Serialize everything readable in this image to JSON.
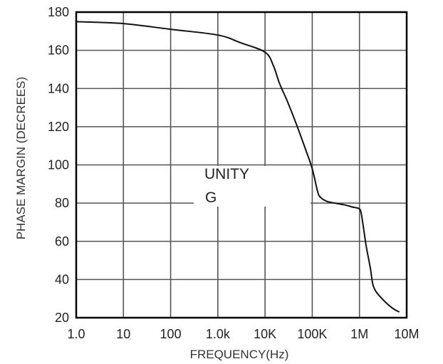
{
  "chart_data": {
    "type": "line",
    "title": "",
    "xlabel": "FREQUENCY(Hz)",
    "ylabel": "PHASE MARGIN (DECREES)",
    "xscale": "log",
    "xlim": [
      1,
      10000000
    ],
    "ylim": [
      20,
      180
    ],
    "grid": true,
    "legend": "none",
    "x_ticks": [
      {
        "value": 1,
        "label": "1.0"
      },
      {
        "value": 10,
        "label": "10"
      },
      {
        "value": 100,
        "label": "100"
      },
      {
        "value": 1000,
        "label": "1.0k"
      },
      {
        "value": 10000,
        "label": "10K"
      },
      {
        "value": 100000,
        "label": "100K"
      },
      {
        "value": 1000000,
        "label": "1M"
      },
      {
        "value": 10000000,
        "label": "10M"
      }
    ],
    "y_ticks": [
      {
        "value": 20,
        "label": "20"
      },
      {
        "value": 40,
        "label": "40"
      },
      {
        "value": 60,
        "label": "60"
      },
      {
        "value": 80,
        "label": "80"
      },
      {
        "value": 100,
        "label": "100"
      },
      {
        "value": 120,
        "label": "120"
      },
      {
        "value": 140,
        "label": "140"
      },
      {
        "value": 160,
        "label": "160"
      },
      {
        "value": 180,
        "label": "180"
      }
    ],
    "annotations": [
      "UNITY",
      "G"
    ],
    "series": [
      {
        "x": [
          1,
          10,
          100,
          1000,
          3000,
          10000,
          15000,
          20000,
          30000,
          50000,
          70000,
          100000,
          130000,
          150000,
          200000,
          300000,
          500000,
          700000,
          1000000,
          1100000,
          1200000,
          1400000,
          1700000,
          2000000,
          3000000,
          5000000,
          7000000
        ],
        "y": [
          175,
          174,
          171,
          168,
          164,
          159,
          152,
          143,
          133,
          119,
          109,
          98,
          86,
          83,
          81,
          80,
          79,
          78,
          77,
          74,
          68,
          57,
          46,
          36,
          30,
          25,
          23
        ]
      }
    ],
    "colors": {
      "line": "#111111",
      "grid": "#555555",
      "frame": "#000000"
    }
  }
}
